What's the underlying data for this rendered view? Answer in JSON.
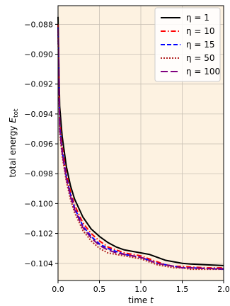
{
  "chart_data": {
    "type": "line",
    "xlabel": "time",
    "xlabel_var": "t",
    "ylabel": "total energy",
    "ylabel_var": "E",
    "ylabel_sub": "tot",
    "xlim": [
      0.0,
      2.0
    ],
    "ylim": [
      -0.10515,
      -0.08675
    ],
    "xticks": [
      0.0,
      0.5,
      1.0,
      1.5,
      2.0
    ],
    "xtick_labels": [
      "0.0",
      "0.5",
      "1.0",
      "1.5",
      "2.0"
    ],
    "yticks": [
      -0.088,
      -0.09,
      -0.092,
      -0.094,
      -0.096,
      -0.098,
      -0.1,
      -0.102,
      -0.104
    ],
    "ytick_labels": [
      "−0.088",
      "−0.090",
      "−0.092",
      "−0.094",
      "−0.096",
      "−0.098",
      "−0.100",
      "−0.102",
      "−0.104"
    ],
    "grid": true,
    "background": "#fdf2e1",
    "legend_placement": "upper-right",
    "series": [
      {
        "name": "η = 1",
        "color": "#000000",
        "style": "solid",
        "x": [
          0.0,
          0.02,
          0.05,
          0.1,
          0.15,
          0.2,
          0.3,
          0.4,
          0.5,
          0.6,
          0.7,
          0.8,
          0.9,
          1.0,
          1.1,
          1.2,
          1.3,
          1.4,
          1.5,
          1.6,
          1.8,
          2.0
        ],
        "y": [
          -0.0875,
          -0.0935,
          -0.0955,
          -0.0975,
          -0.0988,
          -0.0997,
          -0.1009,
          -0.1017,
          -0.1022,
          -0.1026,
          -0.1029,
          -0.1031,
          -0.1032,
          -0.1033,
          -0.1034,
          -0.1036,
          -0.1038,
          -0.1039,
          -0.104,
          -0.10405,
          -0.1041,
          -0.10415
        ]
      },
      {
        "name": "η = 10",
        "color": "#ff0000",
        "style": "dashdot",
        "x": [
          0.0,
          0.02,
          0.05,
          0.1,
          0.15,
          0.2,
          0.3,
          0.4,
          0.5,
          0.6,
          0.7,
          0.8,
          0.9,
          1.0,
          1.1,
          1.2,
          1.3,
          1.4,
          1.5,
          1.6,
          1.8,
          2.0
        ],
        "y": [
          -0.088,
          -0.0945,
          -0.0962,
          -0.098,
          -0.0992,
          -0.1001,
          -0.1013,
          -0.102,
          -0.1025,
          -0.1029,
          -0.1031,
          -0.1033,
          -0.1034,
          -0.1035,
          -0.1037,
          -0.1039,
          -0.1041,
          -0.1042,
          -0.1042,
          -0.10425,
          -0.1043,
          -0.1043
        ]
      },
      {
        "name": "η = 15",
        "color": "#0000ff",
        "style": "dashed",
        "x": [
          0.0,
          0.02,
          0.05,
          0.1,
          0.15,
          0.2,
          0.3,
          0.4,
          0.5,
          0.6,
          0.7,
          0.8,
          0.9,
          1.0,
          1.1,
          1.2,
          1.3,
          1.4,
          1.5,
          1.6,
          1.8,
          2.0
        ],
        "y": [
          -0.0882,
          -0.0948,
          -0.0965,
          -0.0982,
          -0.0994,
          -0.1003,
          -0.1015,
          -0.1022,
          -0.1027,
          -0.103,
          -0.1032,
          -0.1034,
          -0.1035,
          -0.1036,
          -0.1038,
          -0.104,
          -0.1041,
          -0.1042,
          -0.1043,
          -0.1043,
          -0.10435,
          -0.1044
        ]
      },
      {
        "name": "η = 50",
        "color": "#b22222",
        "style": "dotted",
        "x": [
          0.0,
          0.02,
          0.05,
          0.1,
          0.15,
          0.2,
          0.3,
          0.4,
          0.5,
          0.6,
          0.7,
          0.8,
          0.9,
          1.0,
          1.1,
          1.2,
          1.3,
          1.4,
          1.5,
          1.6,
          1.8,
          2.0
        ],
        "y": [
          -0.0885,
          -0.0952,
          -0.0968,
          -0.0985,
          -0.0997,
          -0.1006,
          -0.1018,
          -0.1025,
          -0.103,
          -0.1033,
          -0.1034,
          -0.1035,
          -0.1036,
          -0.1037,
          -0.1039,
          -0.1041,
          -0.1042,
          -0.1043,
          -0.1043,
          -0.1044,
          -0.1044,
          -0.1044
        ]
      },
      {
        "name": "η = 100",
        "color": "#800080",
        "style": "longdash",
        "x": [
          0.0,
          0.02,
          0.05,
          0.1,
          0.15,
          0.2,
          0.3,
          0.4,
          0.5,
          0.6,
          0.7,
          0.8,
          0.9,
          1.0,
          1.1,
          1.2,
          1.3,
          1.4,
          1.5,
          1.6,
          1.8,
          2.0
        ],
        "y": [
          -0.0883,
          -0.095,
          -0.0966,
          -0.0983,
          -0.0995,
          -0.1004,
          -0.1016,
          -0.1023,
          -0.1028,
          -0.1031,
          -0.1033,
          -0.1034,
          -0.1035,
          -0.1036,
          -0.1038,
          -0.104,
          -0.1041,
          -0.1042,
          -0.1043,
          -0.1043,
          -0.10435,
          -0.10435
        ]
      }
    ]
  }
}
